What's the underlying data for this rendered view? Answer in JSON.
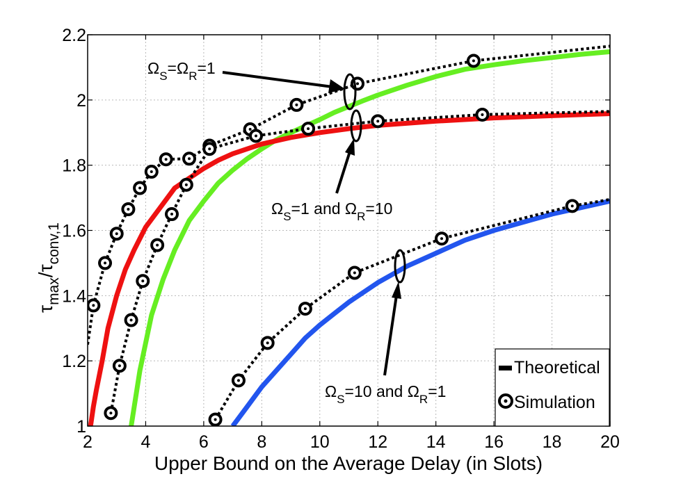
{
  "chart_data": {
    "type": "line",
    "xlabel": "Upper Bound on the Average Delay (in Slots)",
    "ylabel": {
      "base": "τ",
      "sub1": "max",
      "mid": "/τ",
      "sub2": "conv,1"
    },
    "xlim": [
      2,
      20
    ],
    "ylim": [
      1,
      2.2
    ],
    "xticks": [
      2,
      4,
      6,
      8,
      10,
      12,
      14,
      16,
      18,
      20
    ],
    "yticks": [
      1,
      1.2,
      1.4,
      1.6,
      1.8,
      2,
      2.2
    ],
    "xtick_labels": [
      "2",
      "4",
      "6",
      "8",
      "10",
      "12",
      "14",
      "16",
      "18",
      "20"
    ],
    "ytick_labels": [
      "1",
      "1.2",
      "1.4",
      "1.6",
      "1.8",
      "2",
      "2.2"
    ],
    "grid": true,
    "legend": {
      "position": "bottom-right",
      "entries": [
        "Theoretical",
        "Simulation"
      ]
    },
    "annotations": [
      {
        "name": "omega-s-equals-omega-r-1",
        "parts": [
          "Ω",
          "S",
          "=Ω",
          "R",
          "=1"
        ]
      },
      {
        "name": "omega-s-1-omega-r-10",
        "parts": [
          "Ω",
          "S",
          "=1 and Ω",
          "R",
          "=10"
        ]
      },
      {
        "name": "omega-s-10-omega-r-1",
        "parts": [
          "Ω",
          "S",
          "=10 and Ω",
          "R",
          "=1"
        ]
      }
    ],
    "series": [
      {
        "name": "Theoretical Ω_S=Ω_R=1",
        "kind": "theoretical",
        "color": "#66ee22",
        "x": [
          3.5,
          3.8,
          4.2,
          4.6,
          5.0,
          5.5,
          6.0,
          6.5,
          7.0,
          7.5,
          8.0,
          8.5,
          9.0,
          9.5,
          10.0,
          10.5,
          11.0,
          11.5,
          12.0,
          13.0,
          14.0,
          15.0,
          16.0,
          17.0,
          18.0,
          19.0,
          20.0
        ],
        "y": [
          1.0,
          1.17,
          1.34,
          1.45,
          1.54,
          1.63,
          1.69,
          1.745,
          1.785,
          1.82,
          1.85,
          1.878,
          1.9,
          1.92,
          1.94,
          1.962,
          1.98,
          1.998,
          2.015,
          2.045,
          2.072,
          2.094,
          2.108,
          2.12,
          2.13,
          2.14,
          2.148
        ]
      },
      {
        "name": "Theoretical Ω_S=1 and Ω_R=10",
        "kind": "theoretical",
        "color": "#ee1111",
        "x": [
          2.1,
          2.2,
          2.3,
          2.5,
          2.7,
          3.0,
          3.3,
          3.6,
          4.0,
          4.5,
          5.0,
          5.5,
          6.0,
          6.5,
          7.0,
          8.0,
          9.0,
          10.0,
          11.0,
          12.0,
          14.0,
          16.0,
          18.0,
          20.0
        ],
        "y": [
          1.0,
          1.06,
          1.11,
          1.2,
          1.3,
          1.4,
          1.48,
          1.54,
          1.61,
          1.67,
          1.73,
          1.76,
          1.79,
          1.815,
          1.835,
          1.865,
          1.885,
          1.9,
          1.912,
          1.922,
          1.935,
          1.945,
          1.952,
          1.958
        ]
      },
      {
        "name": "Theoretical Ω_S=10 and Ω_R=1",
        "kind": "theoretical",
        "color": "#2255ee",
        "x": [
          7.0,
          7.5,
          8.0,
          8.5,
          9.0,
          9.5,
          10.0,
          10.5,
          11.0,
          11.5,
          12.0,
          13.0,
          14.0,
          15.0,
          16.0,
          17.0,
          18.0,
          19.0,
          20.0
        ],
        "y": [
          1.0,
          1.06,
          1.12,
          1.17,
          1.22,
          1.27,
          1.31,
          1.345,
          1.38,
          1.41,
          1.44,
          1.49,
          1.53,
          1.57,
          1.6,
          1.625,
          1.65,
          1.67,
          1.69
        ]
      },
      {
        "name": "Simulation Ω_S=Ω_R=1 (upper)",
        "kind": "simulation",
        "color": "#000000",
        "x": [
          2.0,
          2.2,
          2.6,
          3.0,
          3.4,
          3.8,
          4.2,
          4.7,
          5.5,
          6.2,
          7.6,
          9.2,
          11.3,
          15.3,
          20.0
        ],
        "y": [
          1.25,
          1.37,
          1.5,
          1.59,
          1.665,
          1.73,
          1.78,
          1.818,
          1.82,
          1.86,
          1.91,
          1.985,
          2.05,
          2.12,
          2.165
        ]
      },
      {
        "name": "Simulation (lower)",
        "kind": "simulation",
        "color": "#000000",
        "x": [
          2.8,
          3.1,
          3.5,
          3.9,
          4.4,
          4.9,
          5.4,
          6.2,
          7.8,
          9.6,
          12.0,
          15.6,
          20.0
        ],
        "y": [
          1.04,
          1.185,
          1.325,
          1.445,
          1.555,
          1.65,
          1.74,
          1.85,
          1.89,
          1.912,
          1.935,
          1.955,
          1.965
        ]
      },
      {
        "name": "Simulation Ω_S=10 and Ω_R=1",
        "kind": "simulation",
        "color": "#000000",
        "x": [
          6.4,
          7.2,
          8.2,
          9.5,
          11.2,
          14.2,
          18.7,
          20.0
        ],
        "y": [
          1.02,
          1.14,
          1.255,
          1.36,
          1.47,
          1.575,
          1.675,
          1.695
        ]
      }
    ]
  }
}
